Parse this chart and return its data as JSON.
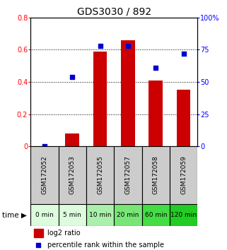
{
  "title": "GDS3030 / 892",
  "categories": [
    "GSM172052",
    "GSM172053",
    "GSM172055",
    "GSM172057",
    "GSM172058",
    "GSM172059"
  ],
  "time_labels": [
    "0 min",
    "5 min",
    "10 min",
    "20 min",
    "60 min",
    "120 min"
  ],
  "log2_ratio": [
    0.0,
    0.08,
    0.59,
    0.66,
    0.41,
    0.35
  ],
  "percentile_rank": [
    0.0,
    54.0,
    78.0,
    78.0,
    61.0,
    72.0
  ],
  "bar_color": "#cc0000",
  "dot_color": "#0000cc",
  "ylim_left": [
    0,
    0.8
  ],
  "ylim_right": [
    0,
    100
  ],
  "yticks_left": [
    0,
    0.2,
    0.4,
    0.6,
    0.8
  ],
  "ytick_labels_left": [
    "0",
    "0.2",
    "0.4",
    "0.6",
    "0.8"
  ],
  "yticks_right": [
    0,
    25,
    50,
    75,
    100
  ],
  "ytick_labels_right": [
    "0",
    "25",
    "50",
    "75",
    "100%"
  ],
  "gsm_bg_color": "#cccccc",
  "time_bg_colors": [
    "#ddfcdd",
    "#ddfcdd",
    "#aaf0aa",
    "#77e677",
    "#44dd44",
    "#22cc22"
  ],
  "bar_width": 0.5,
  "title_fontsize": 10,
  "tick_fontsize": 7,
  "legend_fontsize": 7,
  "gsm_fontsize": 6.5,
  "time_fontsize": 6.5
}
